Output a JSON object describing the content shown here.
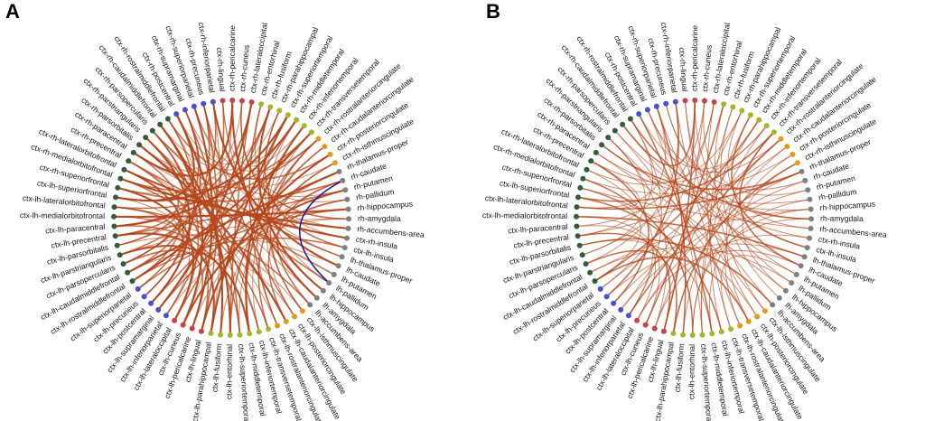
{
  "colors": {
    "frontal": "#2e5e3a",
    "parietal": "#4a4fd0",
    "occipital": "#c8424a",
    "temporal": "#a8b42c",
    "cingulate": "#e39a1c",
    "subcortical": "#808080",
    "edge": "#b5471c",
    "highlight_edge": "#1c1ca8"
  },
  "nodes": [
    {
      "label": "ctx-lh-rostralmiddlefrontal",
      "group": "frontal"
    },
    {
      "label": "ctx-lh-caudalmiddlefrontal",
      "group": "frontal"
    },
    {
      "label": "ctx-lh-parsopercularis",
      "group": "frontal"
    },
    {
      "label": "ctx-lh-parstriangularis",
      "group": "frontal"
    },
    {
      "label": "ctx-lh-parsorbitalis",
      "group": "frontal"
    },
    {
      "label": "ctx-lh-precentral",
      "group": "frontal"
    },
    {
      "label": "ctx-lh-paracentral",
      "group": "frontal"
    },
    {
      "label": "ctx-lh-medialorbitofrontal",
      "group": "frontal"
    },
    {
      "label": "ctx-lh-lateralorbitofrontal",
      "group": "frontal"
    },
    {
      "label": "ctx-lh-superiorfrontal",
      "group": "frontal"
    },
    {
      "label": "ctx-rh-superiorfrontal",
      "group": "frontal"
    },
    {
      "label": "ctx-rh-medialorbitofrontal",
      "group": "frontal"
    },
    {
      "label": "ctx-rh-lateralorbitofrontal",
      "group": "frontal"
    },
    {
      "label": "ctx-rh-precentral",
      "group": "frontal"
    },
    {
      "label": "ctx-rh-paracentral",
      "group": "frontal"
    },
    {
      "label": "ctx-rh-parsorbitalis",
      "group": "frontal"
    },
    {
      "label": "ctx-rh-parstriangularis",
      "group": "frontal"
    },
    {
      "label": "ctx-rh-parsopercularis",
      "group": "frontal"
    },
    {
      "label": "ctx-rh-caudalmiddlefrontal",
      "group": "frontal"
    },
    {
      "label": "ctx-rh-rostralmiddlefrontal",
      "group": "frontal"
    },
    {
      "label": "ctx-rh-postcentral",
      "group": "parietal"
    },
    {
      "label": "ctx-rh-supramarginal",
      "group": "parietal"
    },
    {
      "label": "ctx-rh-superiorparietal",
      "group": "parietal"
    },
    {
      "label": "ctx-rh-precuneus",
      "group": "parietal"
    },
    {
      "label": "ctx-rh-inferiorparietal",
      "group": "parietal"
    },
    {
      "label": "ctx-rh-lingual",
      "group": "occipital"
    },
    {
      "label": "ctx-rh-pericalcarine",
      "group": "occipital"
    },
    {
      "label": "ctx-rh-cuneus",
      "group": "occipital"
    },
    {
      "label": "ctx-rh-lateraloccipital",
      "group": "occipital"
    },
    {
      "label": "ctx-rh-entorhinal",
      "group": "temporal"
    },
    {
      "label": "ctx-rh-fusiform",
      "group": "temporal"
    },
    {
      "label": "ctx-rh-parahippocampal",
      "group": "temporal"
    },
    {
      "label": "ctx-rh-superiortemporal",
      "group": "temporal"
    },
    {
      "label": "ctx-rh-middletemporal",
      "group": "temporal"
    },
    {
      "label": "ctx-rh-inferiortemporal",
      "group": "temporal"
    },
    {
      "label": "ctx-rh-transversetemporal",
      "group": "temporal"
    },
    {
      "label": "ctx-rh-rostralanteriorcingulate",
      "group": "cingulate"
    },
    {
      "label": "ctx-rh-caudalanteriorcingulate",
      "group": "cingulate"
    },
    {
      "label": "ctx-rh-posteriorcingulate",
      "group": "cingulate"
    },
    {
      "label": "ctx-rh-isthmuscingulate",
      "group": "cingulate"
    },
    {
      "label": "rh-thalamus-proper",
      "group": "subcortical"
    },
    {
      "label": "rh-caudate",
      "group": "subcortical"
    },
    {
      "label": "rh-putamen",
      "group": "subcortical"
    },
    {
      "label": "rh-pallidum",
      "group": "subcortical"
    },
    {
      "label": "rh-hippocampus",
      "group": "subcortical"
    },
    {
      "label": "rh-amygdala",
      "group": "subcortical"
    },
    {
      "label": "rh-accumbens-area",
      "group": "subcortical"
    },
    {
      "label": "ctx-rh-insula",
      "group": "subcortical"
    },
    {
      "label": "ctx-lh-insula",
      "group": "subcortical"
    },
    {
      "label": "lh-thalamus-proper",
      "group": "subcortical"
    },
    {
      "label": "lh-caudate",
      "group": "subcortical"
    },
    {
      "label": "lh-putamen",
      "group": "subcortical"
    },
    {
      "label": "lh-pallidum",
      "group": "subcortical"
    },
    {
      "label": "lh-hippocampus",
      "group": "subcortical"
    },
    {
      "label": "lh-amygdala",
      "group": "subcortical"
    },
    {
      "label": "lh-accumbens-area",
      "group": "subcortical"
    },
    {
      "label": "ctx-lh-isthmuscingulate",
      "group": "cingulate"
    },
    {
      "label": "ctx-lh-posteriorcingulate",
      "group": "cingulate"
    },
    {
      "label": "ctx-lh-caudalanteriorcingulate",
      "group": "cingulate"
    },
    {
      "label": "ctx-lh-rostralanteriorcingulate",
      "group": "cingulate"
    },
    {
      "label": "ctx-lh-transversetemporal",
      "group": "temporal"
    },
    {
      "label": "ctx-lh-inferiortemporal",
      "group": "temporal"
    },
    {
      "label": "ctx-lh-middletemporal",
      "group": "temporal"
    },
    {
      "label": "ctx-lh-superiortemporal",
      "group": "temporal"
    },
    {
      "label": "ctx-lh-entorhinal",
      "group": "temporal"
    },
    {
      "label": "ctx-lh-fusiform",
      "group": "temporal"
    },
    {
      "label": "ctx-lh-parahippocampal",
      "group": "temporal"
    },
    {
      "label": "ctx-lh-lingual",
      "group": "occipital"
    },
    {
      "label": "ctx-lh-pericalcarine",
      "group": "occipital"
    },
    {
      "label": "ctx-lh-cuneus",
      "group": "occipital"
    },
    {
      "label": "ctx-lh-lateraloccipital",
      "group": "occipital"
    },
    {
      "label": "ctx-lh-inferiorparietal",
      "group": "parietal"
    },
    {
      "label": "ctx-lh-supramarginal",
      "group": "parietal"
    },
    {
      "label": "ctx-lh-postcentral",
      "group": "parietal"
    },
    {
      "label": "ctx-lh-precuneus",
      "group": "parietal"
    },
    {
      "label": "ctx-lh-superiorparietal",
      "group": "parietal"
    }
  ],
  "panels": [
    {
      "letter": "A",
      "edges": [
        [
          0,
          35,
          3
        ],
        [
          1,
          40,
          3
        ],
        [
          2,
          24,
          2
        ],
        [
          3,
          62,
          3
        ],
        [
          4,
          21,
          2
        ],
        [
          5,
          66,
          3
        ],
        [
          6,
          28,
          2
        ],
        [
          7,
          44,
          3
        ],
        [
          8,
          55,
          2
        ],
        [
          9,
          32,
          3
        ],
        [
          10,
          70,
          3
        ],
        [
          11,
          60,
          2
        ],
        [
          12,
          47,
          3
        ],
        [
          13,
          67,
          2
        ],
        [
          14,
          26,
          3
        ],
        [
          15,
          52,
          2
        ],
        [
          16,
          73,
          3
        ],
        [
          17,
          49,
          2
        ],
        [
          18,
          64,
          3
        ],
        [
          19,
          38,
          2
        ],
        [
          0,
          12,
          2
        ],
        [
          2,
          17,
          2
        ],
        [
          5,
          14,
          2
        ],
        [
          9,
          20,
          3
        ],
        [
          1,
          23,
          2
        ],
        [
          3,
          30,
          2
        ],
        [
          6,
          33,
          3
        ],
        [
          8,
          36,
          2
        ],
        [
          10,
          41,
          2
        ],
        [
          11,
          46,
          3
        ],
        [
          13,
          51,
          2
        ],
        [
          15,
          58,
          3
        ],
        [
          16,
          61,
          2
        ],
        [
          18,
          69,
          3
        ],
        [
          19,
          74,
          2
        ],
        [
          20,
          65,
          3
        ],
        [
          21,
          63,
          2
        ],
        [
          22,
          68,
          3
        ],
        [
          23,
          57,
          2
        ],
        [
          24,
          50,
          3
        ],
        [
          25,
          71,
          2
        ],
        [
          26,
          54,
          3
        ],
        [
          27,
          45,
          2
        ],
        [
          28,
          72,
          3
        ],
        [
          29,
          59,
          2
        ],
        [
          30,
          53,
          3
        ],
        [
          31,
          48,
          2
        ],
        [
          32,
          66,
          3
        ],
        [
          33,
          70,
          2
        ],
        [
          34,
          62,
          3
        ],
        [
          35,
          73,
          2
        ],
        [
          36,
          56,
          2
        ],
        [
          37,
          64,
          2
        ],
        [
          38,
          67,
          3
        ],
        [
          39,
          60,
          2
        ],
        [
          40,
          72,
          2
        ],
        [
          41,
          55,
          2
        ],
        [
          42,
          69,
          3
        ],
        [
          43,
          58,
          2
        ],
        [
          44,
          75,
          2
        ],
        [
          20,
          30,
          1
        ],
        [
          22,
          36,
          1
        ],
        [
          25,
          34,
          1
        ],
        [
          27,
          43,
          1
        ],
        [
          29,
          47,
          1
        ],
        [
          31,
          52,
          1
        ],
        [
          33,
          54,
          1
        ],
        [
          35,
          57,
          1
        ],
        [
          37,
          61,
          1
        ],
        [
          39,
          63,
          1
        ],
        [
          41,
          65,
          1
        ],
        [
          43,
          68,
          1
        ],
        [
          45,
          71,
          1
        ],
        [
          4,
          50,
          1
        ],
        [
          7,
          56,
          1
        ],
        [
          12,
          59,
          1
        ],
        [
          14,
          39,
          1
        ],
        [
          17,
          42,
          1
        ],
        [
          21,
          46,
          1
        ],
        [
          24,
          66,
          1
        ],
        [
          0,
          48,
          2
        ],
        [
          3,
          45,
          1
        ],
        [
          6,
          63,
          2
        ],
        [
          9,
          71,
          1
        ],
        [
          12,
          74,
          2
        ],
        [
          15,
          27,
          1
        ],
        [
          18,
          33,
          1
        ],
        [
          21,
          75,
          2
        ],
        [
          26,
          69,
          1
        ],
        [
          28,
          64,
          2
        ],
        [
          1,
          57,
          1
        ],
        [
          2,
          68,
          2
        ],
        [
          4,
          31,
          1
        ],
        [
          5,
          42,
          2
        ],
        [
          7,
          61,
          1
        ],
        [
          8,
          73,
          2
        ],
        [
          10,
          28,
          1
        ],
        [
          11,
          35,
          2
        ],
        [
          13,
          58,
          1
        ],
        [
          14,
          47,
          1
        ],
        [
          16,
          54,
          1
        ],
        [
          17,
          70,
          2
        ],
        [
          19,
          65,
          1
        ],
        [
          22,
          49,
          1
        ],
        [
          23,
          67,
          2
        ],
        [
          25,
          53,
          1
        ],
        [
          30,
          72,
          2
        ],
        [
          32,
          59,
          1
        ],
        [
          34,
          56,
          1
        ],
        [
          36,
          62,
          2
        ]
      ],
      "highlight_edges": [
        [
          41,
          52
        ]
      ]
    },
    {
      "letter": "B",
      "edges": [
        [
          0,
          33,
          2
        ],
        [
          1,
          44,
          1
        ],
        [
          2,
          66,
          2
        ],
        [
          3,
          28,
          1
        ],
        [
          4,
          55,
          2
        ],
        [
          5,
          37,
          1
        ],
        [
          6,
          70,
          1
        ],
        [
          7,
          49,
          2
        ],
        [
          8,
          22,
          1
        ],
        [
          9,
          61,
          2
        ],
        [
          10,
          46,
          1
        ],
        [
          11,
          64,
          2
        ],
        [
          12,
          31,
          1
        ],
        [
          13,
          73,
          2
        ],
        [
          14,
          53,
          1
        ],
        [
          15,
          40,
          2
        ],
        [
          16,
          68,
          1
        ],
        [
          17,
          58,
          1
        ],
        [
          18,
          26,
          2
        ],
        [
          19,
          71,
          1
        ],
        [
          20,
          62,
          2
        ],
        [
          21,
          51,
          1
        ],
        [
          22,
          65,
          2
        ],
        [
          23,
          45,
          1
        ],
        [
          24,
          74,
          2
        ],
        [
          25,
          57,
          1
        ],
        [
          26,
          67,
          2
        ],
        [
          27,
          42,
          1
        ],
        [
          28,
          60,
          1
        ],
        [
          29,
          69,
          2
        ],
        [
          30,
          54,
          1
        ],
        [
          31,
          72,
          1
        ],
        [
          32,
          48,
          2
        ],
        [
          34,
          63,
          1
        ],
        [
          35,
          50,
          2
        ],
        [
          36,
          75,
          1
        ],
        [
          38,
          59,
          1
        ],
        [
          39,
          66,
          2
        ],
        [
          41,
          70,
          1
        ],
        [
          43,
          64,
          1
        ],
        [
          0,
          10,
          1
        ],
        [
          3,
          16,
          1
        ],
        [
          5,
          19,
          1
        ],
        [
          8,
          13,
          1
        ],
        [
          2,
          24,
          1
        ],
        [
          6,
          27,
          1
        ],
        [
          9,
          35,
          2
        ],
        [
          11,
          38,
          1
        ],
        [
          14,
          43,
          1
        ],
        [
          17,
          47,
          1
        ],
        [
          20,
          34,
          1
        ],
        [
          21,
          36,
          1
        ],
        [
          23,
          41,
          1
        ],
        [
          25,
          52,
          1
        ],
        [
          29,
          56,
          1
        ],
        [
          30,
          61,
          1
        ],
        [
          32,
          63,
          1
        ],
        [
          33,
          68,
          1
        ],
        [
          37,
          65,
          1
        ],
        [
          40,
          73,
          1
        ],
        [
          1,
          52,
          1
        ],
        [
          4,
          62,
          1
        ],
        [
          7,
          69,
          1
        ],
        [
          10,
          57,
          1
        ],
        [
          12,
          71,
          1
        ],
        [
          15,
          44,
          1
        ],
        [
          18,
          50,
          1
        ],
        [
          22,
          55,
          1
        ],
        [
          24,
          59,
          1
        ],
        [
          26,
          48,
          1
        ],
        [
          27,
          67,
          1
        ],
        [
          28,
          75,
          1
        ],
        [
          31,
          46,
          1
        ],
        [
          35,
          58,
          1
        ],
        [
          39,
          53,
          1
        ],
        [
          42,
          72,
          1
        ],
        [
          45,
          64,
          1
        ],
        [
          47,
          68,
          1
        ],
        [
          49,
          74,
          1
        ],
        [
          51,
          60,
          1
        ],
        [
          0,
          58,
          2
        ],
        [
          5,
          67,
          2
        ],
        [
          8,
          40,
          2
        ],
        [
          13,
          34,
          1
        ],
        [
          16,
          56,
          1
        ],
        [
          19,
          45,
          2
        ],
        [
          21,
          63,
          1
        ],
        [
          36,
          71,
          2
        ],
        [
          44,
          62,
          1
        ],
        [
          50,
          70,
          1
        ]
      ],
      "highlight_edges": []
    }
  ]
}
